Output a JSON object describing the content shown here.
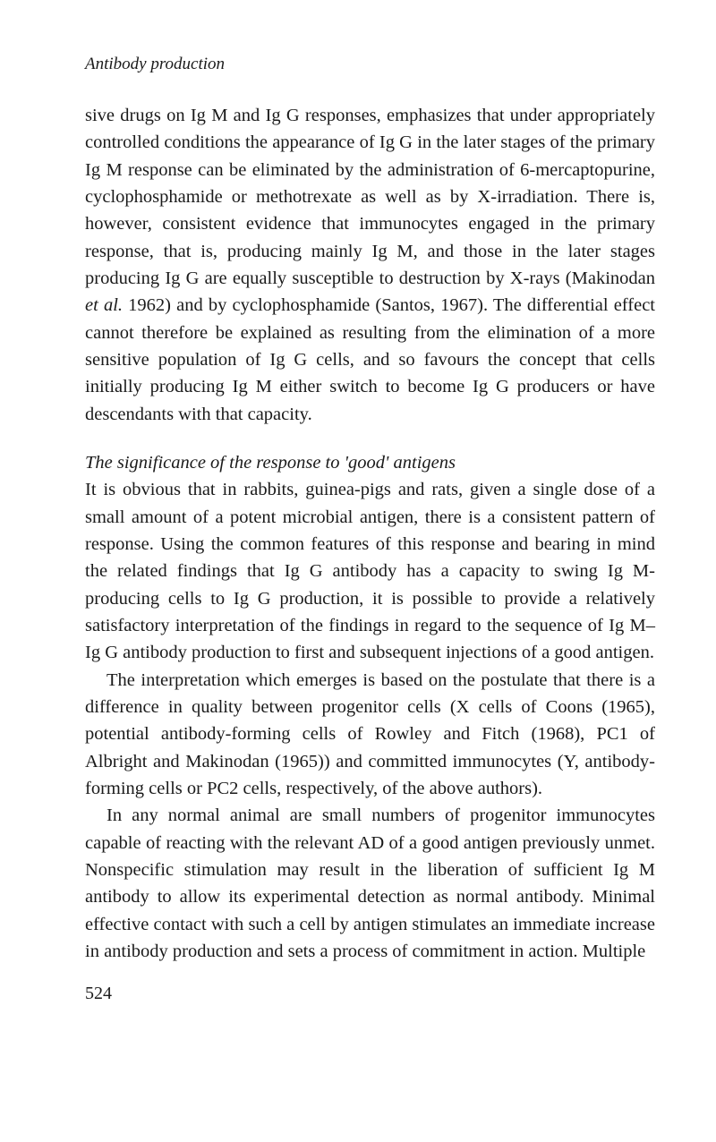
{
  "header": "Antibody production",
  "paragraph1": "sive drugs on Ig M and Ig G responses, emphasizes that under appropriately controlled conditions the appearance of Ig G in the later stages of the primary Ig M response can be eliminated by the administration of 6-mercaptopurine, cyclophosphamide or methotrexate as well as by X-irradiation. There is, however, consistent evidence that immunocytes engaged in the primary response, that is, producing mainly Ig M, and those in the later stages producing Ig G are equally susceptible to destruction by X-rays (Makinodan ",
  "paragraph1_italic": "et al.",
  "paragraph1_cont": " 1962) and by cyclophosphamide (Santos, 1967). The differential effect cannot therefore be explained as resulting from the elimination of a more sensitive population of Ig G cells, and so favours the concept that cells initially producing Ig M either switch to become Ig G producers or have descendants with that capacity.",
  "section_title": "The significance of the response to 'good' antigens",
  "paragraph2": "It is obvious that in rabbits, guinea-pigs and rats, given a single dose of a small amount of a potent microbial antigen, there is a consistent pattern of response. Using the common features of this response and bearing in mind the related findings that Ig G antibody has a capacity to swing Ig M-producing cells to Ig G production, it is possible to provide a relatively satisfactory interpretation of the findings in regard to the sequence of Ig M–Ig G antibody production to first and subsequent injections of a good antigen.",
  "paragraph3": "The interpretation which emerges is based on the postulate that there is a difference in quality between progenitor cells (X cells of Coons (1965), potential antibody-forming cells of Rowley and Fitch (1968), PC1 of Albright and Makinodan (1965)) and committed immunocytes (Y, antibody-forming cells or PC2 cells, respectively, of the above authors).",
  "paragraph4": "In any normal animal are small numbers of progenitor immunocytes capable of reacting with the relevant AD of a good antigen previously unmet. Nonspecific stimulation may result in the liberation of sufficient Ig M antibody to allow its experimental detection as normal antibody. Minimal effective contact with such a cell by antigen stimulates an immediate increase in antibody production and sets a process of commitment in action. Multiple",
  "page_number": "524"
}
